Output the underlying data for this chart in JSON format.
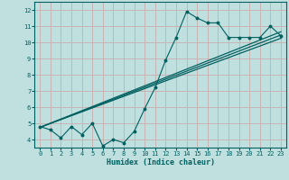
{
  "title": "",
  "xlabel": "Humidex (Indice chaleur)",
  "ylabel": "",
  "bg_color": "#c0e0e0",
  "grid_color": "#c8b4b4",
  "line_color": "#006060",
  "xlim": [
    -0.5,
    23.5
  ],
  "ylim": [
    3.5,
    12.5
  ],
  "xticks": [
    0,
    1,
    2,
    3,
    4,
    5,
    6,
    7,
    8,
    9,
    10,
    11,
    12,
    13,
    14,
    15,
    16,
    17,
    18,
    19,
    20,
    21,
    22,
    23
  ],
  "yticks": [
    4,
    5,
    6,
    7,
    8,
    9,
    10,
    11,
    12
  ],
  "data_line": {
    "x": [
      0,
      1,
      2,
      3,
      4,
      5,
      6,
      7,
      8,
      9,
      10,
      11,
      12,
      13,
      14,
      15,
      16,
      17,
      18,
      19,
      20,
      21,
      22,
      23
    ],
    "y": [
      4.8,
      4.6,
      4.1,
      4.8,
      4.3,
      5.0,
      3.6,
      4.0,
      3.8,
      4.5,
      5.9,
      7.2,
      8.9,
      10.3,
      11.9,
      11.5,
      11.2,
      11.2,
      10.3,
      10.3,
      10.3,
      10.3,
      11.0,
      10.4
    ]
  },
  "reg_line1": {
    "x": [
      0,
      23
    ],
    "y": [
      4.75,
      10.25
    ]
  },
  "reg_line2": {
    "x": [
      0,
      23
    ],
    "y": [
      4.75,
      10.45
    ]
  },
  "reg_line3": {
    "x": [
      0,
      23
    ],
    "y": [
      4.75,
      10.65
    ]
  }
}
